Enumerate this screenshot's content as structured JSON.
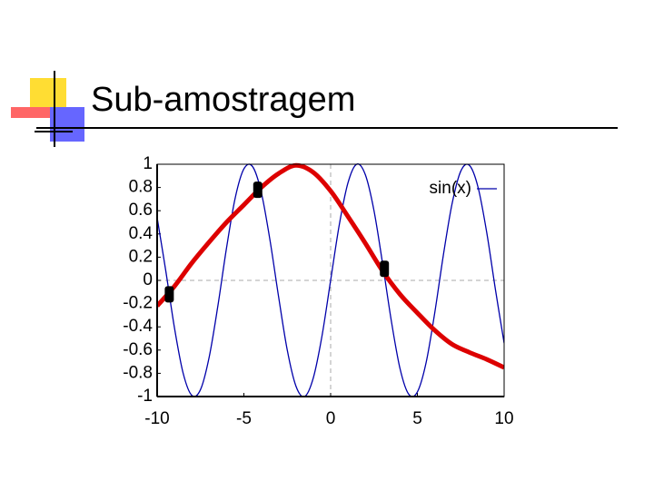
{
  "title": "Sub-amostragem",
  "chart_data": {
    "type": "line",
    "xlim": [
      -10,
      10
    ],
    "ylim": [
      -1,
      1
    ],
    "xticks": [
      -10,
      -5,
      0,
      5,
      10
    ],
    "yticks": [
      1,
      0.8,
      0.6,
      0.4,
      0.2,
      0,
      -0.2,
      -0.4,
      -0.6,
      -0.8,
      -1
    ],
    "reference_lines": {
      "x": 0,
      "y": 0
    },
    "legend": "upper right",
    "series": [
      {
        "name": "sin(x)",
        "color": "#0000aa",
        "style": "line",
        "x": [
          -10,
          -9.5,
          -9,
          -8.5,
          -8,
          -7.5,
          -7,
          -6.5,
          -6,
          -5.5,
          -5,
          -4.5,
          -4,
          -3.5,
          -3,
          -2.5,
          -2,
          -1.5,
          -1,
          -0.5,
          0,
          0.5,
          1,
          1.5,
          2,
          2.5,
          3,
          3.5,
          4,
          4.5,
          5,
          5.5,
          6,
          6.5,
          7,
          7.5,
          8,
          8.5,
          9,
          9.5,
          10
        ],
        "values": [
          0.54,
          0.08,
          -0.41,
          -0.8,
          -0.99,
          -0.94,
          -0.66,
          -0.22,
          0.28,
          0.71,
          0.96,
          0.98,
          0.76,
          0.35,
          -0.14,
          -0.6,
          -0.91,
          -1.0,
          -0.84,
          -0.48,
          0,
          0.48,
          0.84,
          1.0,
          0.91,
          0.6,
          0.14,
          -0.35,
          -0.76,
          -0.98,
          -0.96,
          -0.71,
          -0.28,
          0.22,
          0.66,
          0.94,
          0.99,
          0.8,
          0.41,
          -0.08,
          -0.54
        ]
      },
      {
        "color": "#dd0000",
        "style": "thick-line",
        "x": [
          -10,
          -9,
          -8,
          -7,
          -6,
          -5,
          -4,
          -3,
          -2,
          -1,
          0,
          1,
          2,
          3,
          4,
          5,
          6,
          7,
          8,
          9,
          10
        ],
        "values": [
          -0.22,
          -0.05,
          0.15,
          0.33,
          0.5,
          0.65,
          0.8,
          0.92,
          0.99,
          0.93,
          0.77,
          0.55,
          0.32,
          0.08,
          -0.12,
          -0.28,
          -0.43,
          -0.55,
          -0.62,
          -0.68,
          -0.75
        ]
      },
      {
        "color": "#000000",
        "style": "markers",
        "x": [
          -9.3,
          -4.2,
          3.1
        ],
        "values": [
          -0.12,
          0.78,
          0.1
        ]
      }
    ]
  }
}
